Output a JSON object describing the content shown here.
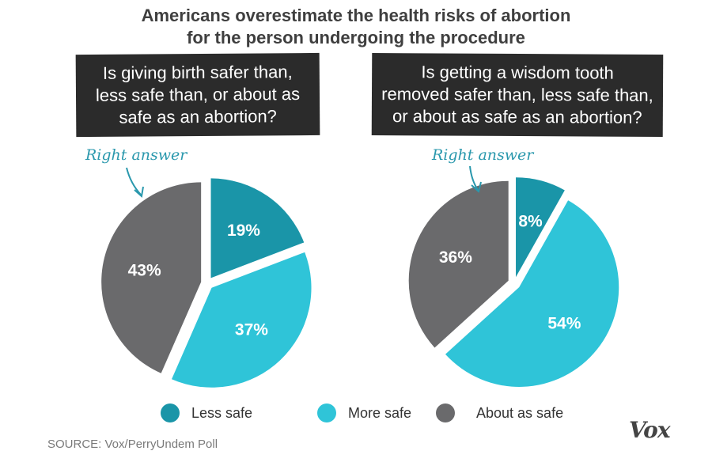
{
  "title": {
    "line1": "Americans overestimate the health risks of abortion",
    "line2": "for the person undergoing the procedure"
  },
  "colors": {
    "less_safe": "#1a95a8",
    "more_safe": "#2fc4d8",
    "about_as_safe": "#6a6a6c",
    "question_bg": "#2b2b2b",
    "annotation": "#2a98ad"
  },
  "chart_data": [
    {
      "type": "pie",
      "question_lines": [
        "Is giving birth safer than,",
        "less safe than, or about as",
        "safe as an abortion?"
      ],
      "annotation": "Right answer",
      "slices": [
        {
          "category": "Less safe",
          "value": 19,
          "label": "19%",
          "highlight": true
        },
        {
          "category": "More safe",
          "value": 37,
          "label": "37%"
        },
        {
          "category": "About as safe",
          "value": 43,
          "label": "43%"
        }
      ]
    },
    {
      "type": "pie",
      "question_lines": [
        "Is getting a wisdom tooth",
        "removed safer than, less safe than,",
        "or about as safe as an abortion?"
      ],
      "annotation": "Right answer",
      "slices": [
        {
          "category": "Less safe",
          "value": 8,
          "label": "8%",
          "highlight": true
        },
        {
          "category": "More safe",
          "value": 54,
          "label": "54%"
        },
        {
          "category": "About as safe",
          "value": 36,
          "label": "36%"
        }
      ]
    }
  ],
  "legend": [
    {
      "label": "Less safe",
      "color": "#1a95a8"
    },
    {
      "label": "More safe",
      "color": "#2fc4d8"
    },
    {
      "label": "About as safe",
      "color": "#6a6a6c"
    }
  ],
  "source": "SOURCE: Vox/PerryUndem Poll",
  "logo": "Vox"
}
